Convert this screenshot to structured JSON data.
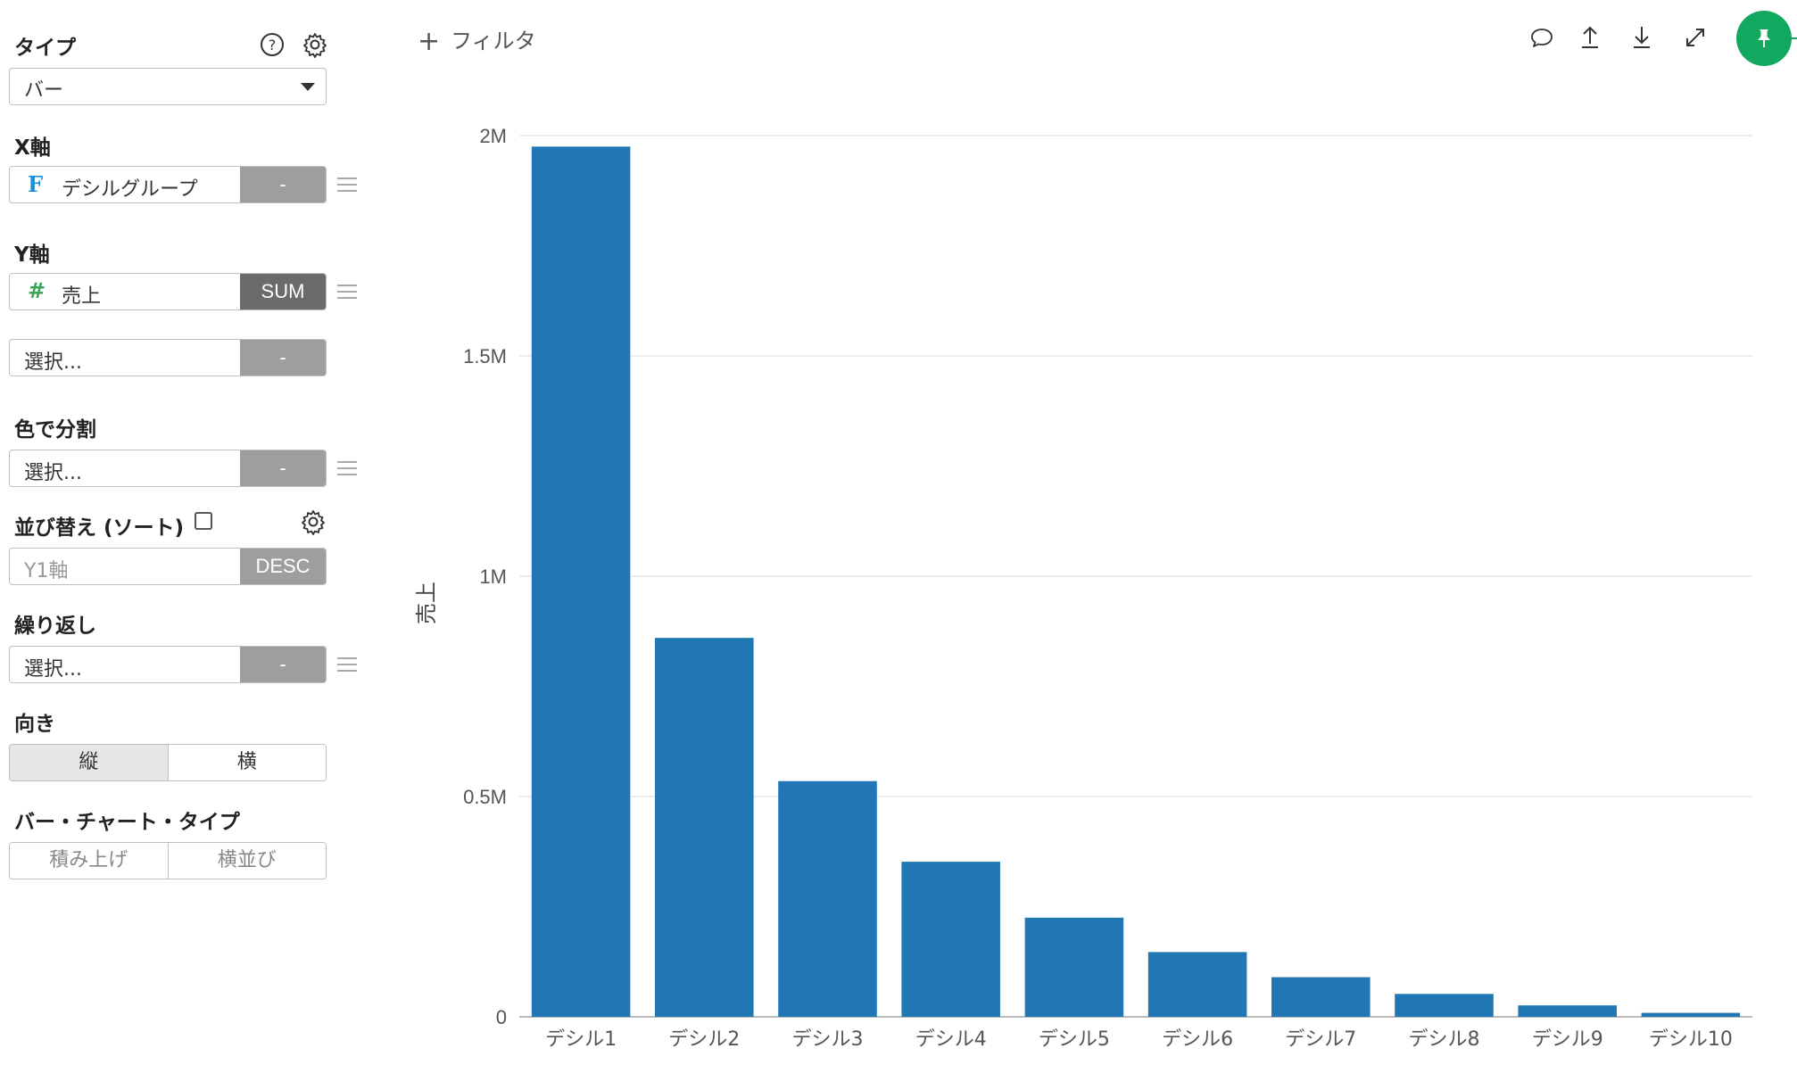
{
  "sidebar": {
    "type": {
      "label": "タイプ",
      "value": "バー"
    },
    "xaxis": {
      "label": "X軸",
      "field_icon": "F",
      "field": "デシルグループ",
      "agg": "-"
    },
    "yaxis": {
      "label": "Y軸",
      "field_icon": "#",
      "field": "売上",
      "agg": "SUM",
      "extra_placeholder": "選択...",
      "extra_agg": "-"
    },
    "color_split": {
      "label": "色で分割",
      "placeholder": "選択...",
      "agg": "-"
    },
    "sort": {
      "label": "並び替え (ソート)",
      "checked": false,
      "field": "Y1軸",
      "order": "DESC"
    },
    "repeat": {
      "label": "繰り返し",
      "placeholder": "選択...",
      "agg": "-"
    },
    "orientation": {
      "label": "向き",
      "options": [
        "縦",
        "横"
      ],
      "selected": "縦"
    },
    "bar_chart_type": {
      "label": "バー・チャート・タイプ",
      "options": [
        "積み上げ",
        "横並び"
      ]
    }
  },
  "toolbar": {
    "filter_label": "フィルタ",
    "icons": [
      "comment-icon",
      "upload-icon",
      "download-icon",
      "expand-icon",
      "pin-icon"
    ],
    "pin_color": "#13a860"
  },
  "chart_data": {
    "type": "bar",
    "categories": [
      "デシル1",
      "デシル2",
      "デシル3",
      "デシル4",
      "デシル5",
      "デシル6",
      "デシル7",
      "デシル8",
      "デシル9",
      "デシル10"
    ],
    "values": [
      1975000,
      860000,
      535000,
      352000,
      225000,
      147000,
      90000,
      52000,
      26000,
      9000
    ],
    "ylabel": "売上",
    "xlabel": "",
    "ylim": [
      0,
      2000000
    ],
    "yticks": [
      0,
      500000,
      1000000,
      1500000,
      2000000
    ],
    "ytick_labels": [
      "0",
      "0.5M",
      "1M",
      "1.5M",
      "2M"
    ],
    "bar_color": "#2077b4",
    "grid": true
  }
}
